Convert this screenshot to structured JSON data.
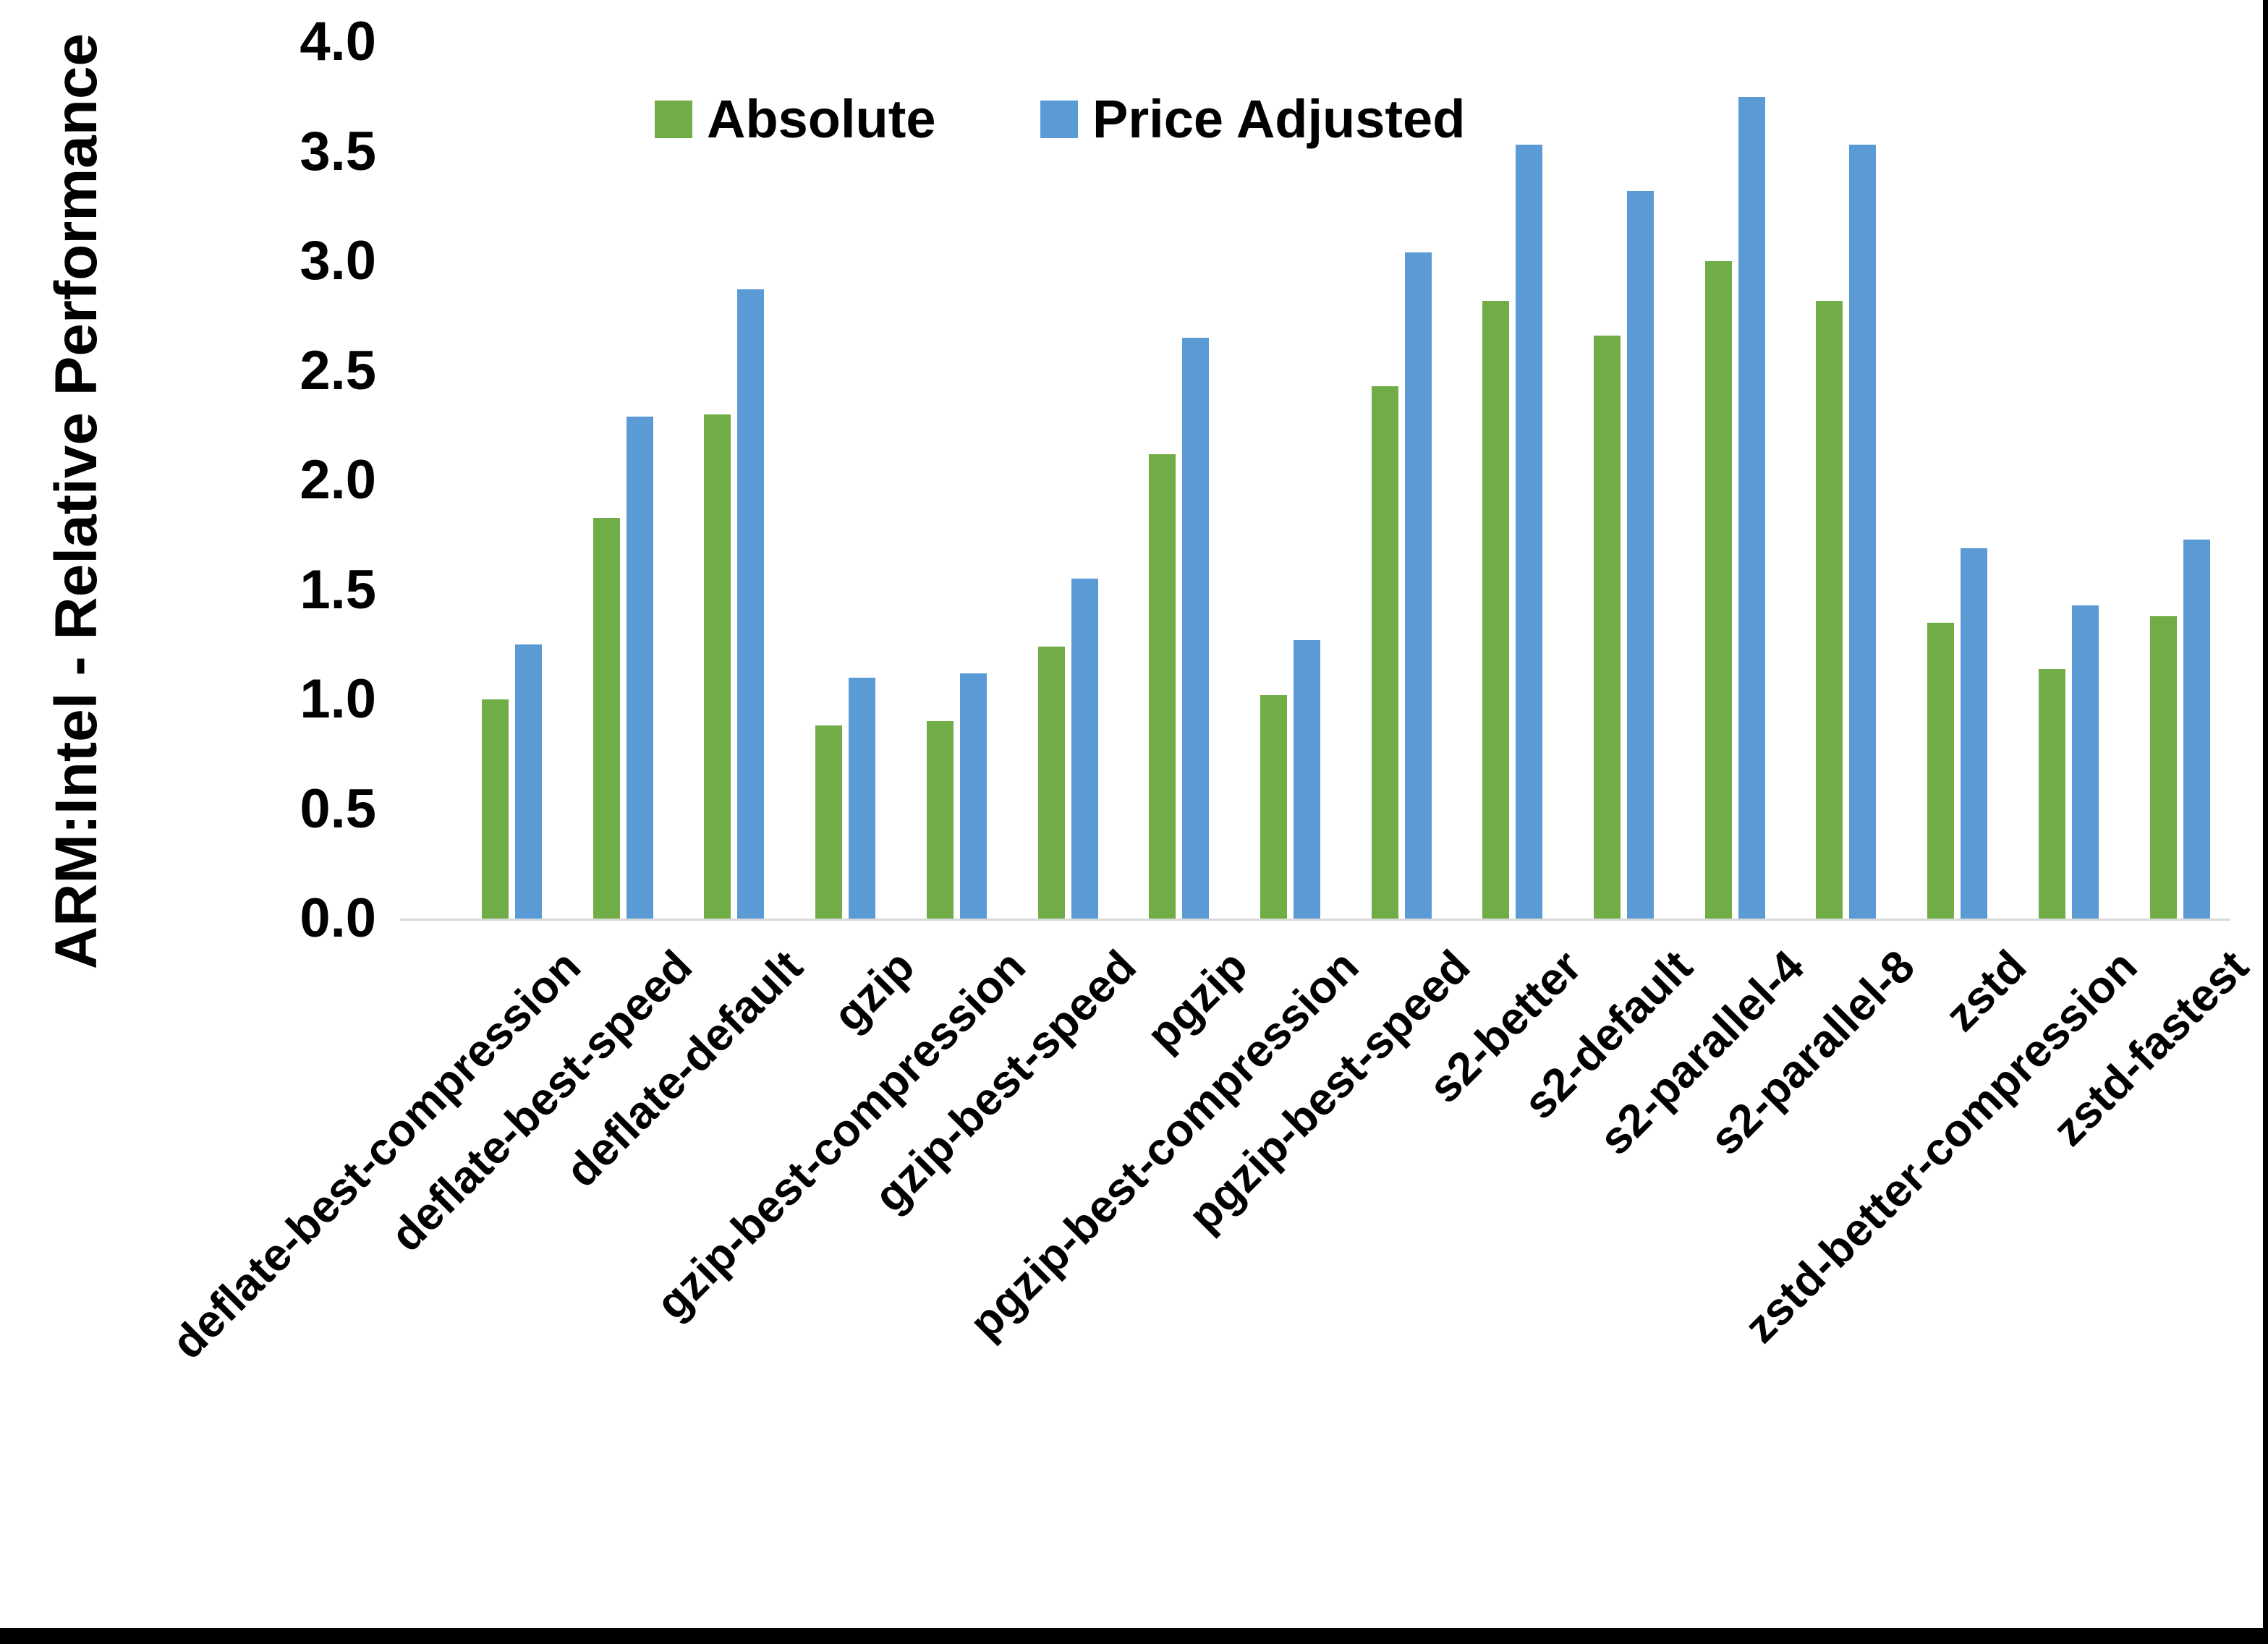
{
  "page": {
    "background": "#ffffff",
    "border_color": "#000000"
  },
  "axis": {
    "y_title": "ARM:Intel - Relative Performance",
    "baseline_color": "#d9d9d9",
    "ytick_labels": [
      "0.0",
      "0.5",
      "1.0",
      "1.5",
      "2.0",
      "2.5",
      "3.0",
      "3.5",
      "4.0"
    ]
  },
  "chart_data": {
    "type": "bar",
    "title": "",
    "xlabel": "",
    "ylabel": "ARM:Intel - Relative Performance",
    "ylim": [
      0,
      4
    ],
    "ytick_step": 0.5,
    "grid": false,
    "legend_position": "top-center",
    "categories": [
      "deflate-best-compression",
      "deflate-best-speed",
      "deflate-default",
      "gzip",
      "gzip-best-compression",
      "gzip-best-speed",
      "pgzip",
      "pgzip-best-compression",
      "pgzip-best-speed",
      "s2-better",
      "s2-default",
      "s2-parallel-4",
      "s2-parallel-8",
      "zstd",
      "zstd-better-compression",
      "zstd-fastest"
    ],
    "series": [
      {
        "name": "Absolute",
        "color": "#70AD47",
        "values": [
          1.0,
          1.83,
          2.3,
          0.88,
          0.9,
          1.24,
          2.12,
          1.02,
          2.43,
          2.82,
          2.66,
          3.0,
          2.82,
          1.35,
          1.14,
          1.38
        ]
      },
      {
        "name": "Price Adjusted",
        "color": "#5B9BD5",
        "values": [
          1.25,
          2.29,
          2.87,
          1.1,
          1.12,
          1.55,
          2.65,
          1.27,
          3.04,
          3.53,
          3.32,
          3.75,
          3.53,
          1.69,
          1.43,
          1.73
        ]
      }
    ]
  }
}
